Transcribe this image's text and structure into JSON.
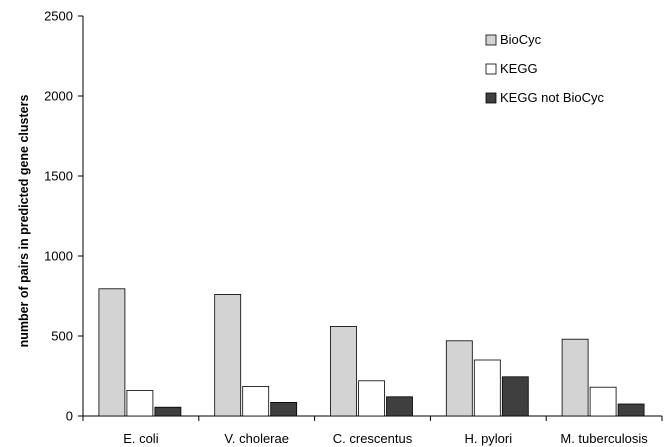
{
  "chart_data": {
    "type": "bar",
    "categories": [
      "E. coli",
      "V. cholerae",
      "C. crescentus",
      "H. pylori",
      "M. tuberculosis"
    ],
    "series": [
      {
        "name": "BioCyc",
        "values": [
          795,
          760,
          560,
          470,
          480
        ],
        "color": "#d3d3d3"
      },
      {
        "name": "KEGG",
        "values": [
          160,
          185,
          220,
          350,
          180
        ],
        "color": "#ffffff"
      },
      {
        "name": "KEGG not BioCyc",
        "values": [
          55,
          85,
          120,
          245,
          75
        ],
        "color": "#3f3f3f"
      }
    ],
    "title": "",
    "xlabel": "",
    "ylabel": "number of pairs in predicted gene clusters",
    "ylim": [
      0,
      2500
    ],
    "yticks": [
      0,
      500,
      1000,
      1500,
      2000,
      2500
    ],
    "grid": false,
    "legend_position": "top-right"
  }
}
